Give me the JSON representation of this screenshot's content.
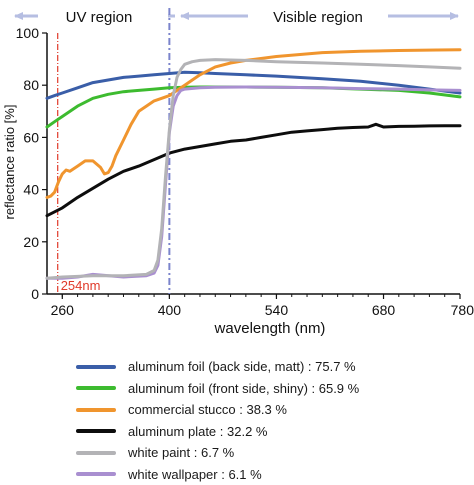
{
  "chart_data": {
    "type": "line",
    "xlabel": "wavelength (nm)",
    "ylabel": "reflectance ratio [%]",
    "xlim": [
      240,
      780
    ],
    "ylim": [
      0,
      100
    ],
    "x_ticks": [
      "260",
      "400",
      "540",
      "680",
      "780"
    ],
    "y_ticks": [
      "0",
      "20",
      "40",
      "60",
      "80",
      "100"
    ],
    "grid": false,
    "legend_placement": "below",
    "region_labels": {
      "uv": "UV region",
      "visible": "Visible region"
    },
    "region_boundary_x": 400,
    "marker": {
      "x": 254,
      "label": "254nm",
      "color": "#e03a2a"
    },
    "series": [
      {
        "name": "aluminum foil (back side, matt) : 75.7 %",
        "color": "#3a5ea8",
        "x": [
          240,
          250,
          260,
          280,
          300,
          320,
          340,
          360,
          380,
          400,
          420,
          440,
          460,
          500,
          540,
          600,
          650,
          700,
          740,
          780
        ],
        "y": [
          75,
          76,
          77,
          79,
          81,
          82,
          83,
          83.5,
          84,
          84.5,
          85,
          84.8,
          84.5,
          84,
          83.5,
          82.5,
          81.5,
          80,
          78.5,
          77
        ]
      },
      {
        "name": "aluminum foil (front side, shiny) : 65.9 %",
        "color": "#3dbb2f",
        "x": [
          240,
          250,
          260,
          280,
          300,
          320,
          340,
          360,
          380,
          400,
          420,
          440,
          460,
          500,
          540,
          600,
          650,
          700,
          740,
          780
        ],
        "y": [
          64,
          66,
          68,
          72,
          75,
          76.5,
          77.5,
          78,
          78.5,
          79,
          79.2,
          79.3,
          79.3,
          79.3,
          79.2,
          79,
          78.5,
          78,
          77,
          75.5
        ]
      },
      {
        "name": "commercial stucco : 38.3 %",
        "color": "#f0952e",
        "x": [
          240,
          245,
          250,
          255,
          260,
          265,
          270,
          280,
          290,
          300,
          310,
          315,
          320,
          325,
          330,
          340,
          350,
          360,
          370,
          380,
          390,
          400,
          410,
          420,
          430,
          440,
          460,
          480,
          500,
          540,
          600,
          650,
          700,
          750,
          780
        ],
        "y": [
          37,
          37.5,
          39,
          43,
          46,
          47.5,
          47,
          49,
          51,
          51,
          48.5,
          46,
          46.5,
          49,
          53,
          59,
          65,
          70,
          72,
          74,
          75,
          76,
          78,
          80,
          82,
          84,
          87,
          88.5,
          89.5,
          91,
          92.5,
          93,
          93.3,
          93.5,
          93.6
        ]
      },
      {
        "name": "aluminum plate : 32.2 %",
        "color": "#0d0d0d",
        "x": [
          240,
          260,
          280,
          300,
          320,
          340,
          360,
          380,
          400,
          420,
          440,
          460,
          480,
          500,
          520,
          540,
          560,
          580,
          600,
          620,
          640,
          660,
          670,
          680,
          700,
          720,
          740,
          760,
          780
        ],
        "y": [
          30,
          33,
          37,
          40.5,
          44,
          47,
          49,
          51.5,
          54,
          55.5,
          56.5,
          57.5,
          58.5,
          59,
          60,
          61,
          62,
          62.5,
          63,
          63.5,
          63.8,
          64,
          65,
          64,
          64.2,
          64.3,
          64.4,
          64.5,
          64.5
        ]
      },
      {
        "name": "white paint : 6.7 %",
        "color": "#b3b3b6",
        "x": [
          240,
          260,
          300,
          340,
          370,
          380,
          385,
          390,
          395,
          400,
          405,
          410,
          415,
          420,
          430,
          440,
          460,
          500,
          540,
          600,
          650,
          700,
          740,
          780
        ],
        "y": [
          6,
          6.5,
          7,
          7,
          7.5,
          9,
          13,
          25,
          45,
          63,
          76,
          83,
          86,
          88,
          89,
          89.5,
          89.8,
          89.5,
          89,
          88.5,
          88,
          87.5,
          87,
          86.5
        ]
      },
      {
        "name": "white wallpaper : 6.1 %",
        "color": "#a98fd0",
        "x": [
          240,
          260,
          280,
          300,
          340,
          370,
          380,
          385,
          390,
          395,
          400,
          405,
          410,
          415,
          420,
          440,
          460,
          500,
          540,
          600,
          650,
          700,
          740,
          780
        ],
        "y": [
          6,
          6,
          6.5,
          7.5,
          6.5,
          7,
          8,
          11,
          22,
          42,
          62,
          72,
          76,
          78,
          78.5,
          79,
          79.2,
          79.3,
          79.2,
          79,
          78.7,
          78.5,
          78.2,
          78
        ]
      }
    ]
  }
}
